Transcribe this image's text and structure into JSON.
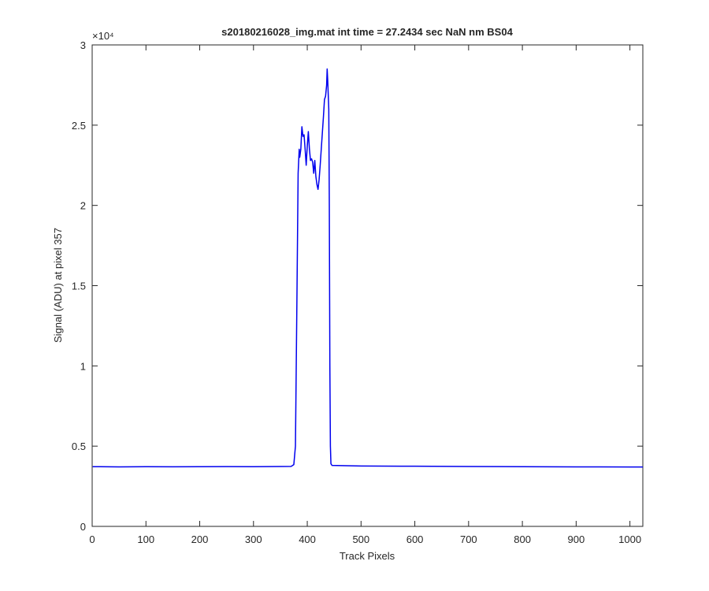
{
  "chart_data": {
    "type": "line",
    "title": "s20180216028_img.mat int time = 27.2434 sec  NaN nm BS04",
    "x_label": "Track Pixels",
    "y_label": "Signal (ADU) at pixel 357",
    "y_multiplier": "×10⁴",
    "xlim": [
      0,
      1024
    ],
    "xticks": [
      0,
      100,
      200,
      300,
      400,
      500,
      600,
      700,
      800,
      900,
      1000
    ],
    "ylim": [
      0,
      30000
    ],
    "yticks": [
      0,
      {
        "value": 5000,
        "label": "0.5"
      },
      {
        "value": 10000,
        "label": "1"
      },
      {
        "value": 15000,
        "label": "1.5"
      },
      {
        "value": 20000,
        "label": "2"
      },
      {
        "value": 25000,
        "label": "2.5"
      },
      {
        "value": 30000,
        "label": "3"
      }
    ],
    "grid": false,
    "x": [
      1,
      50,
      100,
      150,
      200,
      250,
      300,
      350,
      370,
      375,
      378,
      381,
      383,
      385,
      386,
      388,
      390,
      392,
      394,
      396,
      398,
      400,
      402,
      404,
      406,
      408,
      410,
      412,
      414,
      416,
      418,
      420,
      422,
      424,
      426,
      428,
      430,
      432,
      434,
      436,
      437,
      438,
      440,
      441,
      442,
      443,
      444,
      446,
      500,
      600,
      700,
      800,
      900,
      1000,
      1024
    ],
    "series": [
      {
        "color": "#0000ee",
        "values": [
          3720,
          3710,
          3720,
          3715,
          3720,
          3725,
          3720,
          3730,
          3740,
          3850,
          5000,
          15000,
          22000,
          23500,
          23000,
          23500,
          24900,
          24300,
          24400,
          23500,
          22500,
          23700,
          24600,
          23500,
          22800,
          22900,
          22700,
          22000,
          22800,
          21800,
          21300,
          21000,
          21600,
          22500,
          23500,
          24500,
          25500,
          26600,
          26800,
          27500,
          28500,
          27800,
          26000,
          20000,
          10000,
          5000,
          3900,
          3800,
          3760,
          3750,
          3730,
          3720,
          3710,
          3700,
          3700
        ]
      }
    ]
  }
}
